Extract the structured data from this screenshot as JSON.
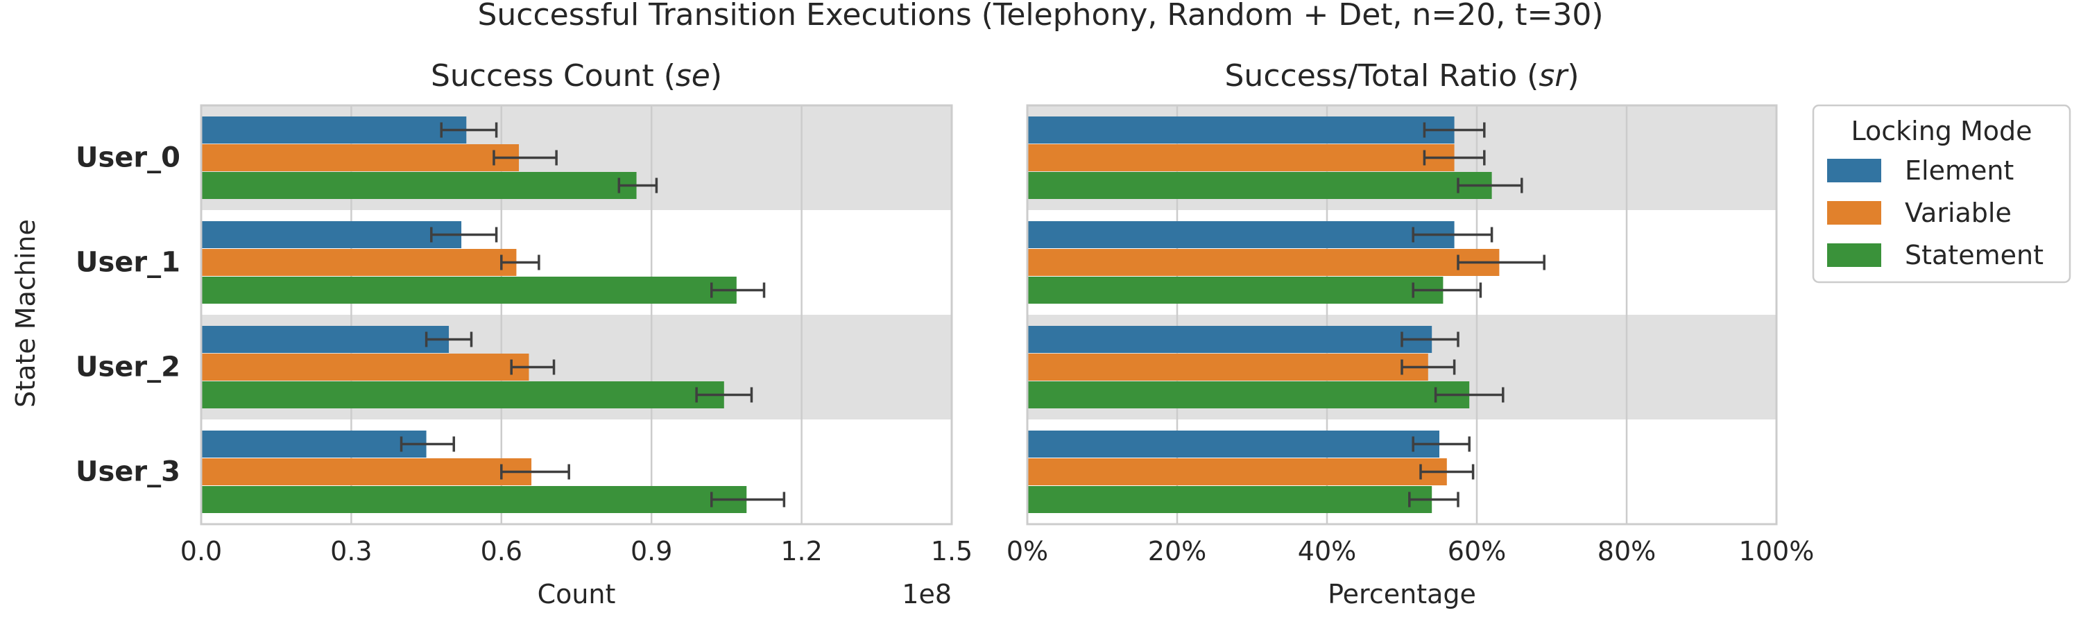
{
  "figure": {
    "suptitle": "Successful Transition Executions (Telephony, Random + Det, n=20, t=30)",
    "ylabel": "State Machine"
  },
  "legend": {
    "title": "Locking Mode",
    "entries": [
      "Element",
      "Variable",
      "Statement"
    ]
  },
  "colors": {
    "Element": "#3274a1",
    "Variable": "#e1812c",
    "Statement": "#3a923a",
    "band": "#e0e0e0",
    "grid": "#cccccc",
    "frame": "#cccccc",
    "errorbar": "#3f3f3f"
  },
  "chart_data": [
    {
      "type": "bar",
      "orientation": "horizontal",
      "title_prefix": "Success Count (",
      "title_italic": "se",
      "title_suffix": ")",
      "xlabel": "Count",
      "offset_text": "1e8",
      "xlim": [
        0,
        1.5
      ],
      "xticks": [
        0.0,
        0.3,
        0.6,
        0.9,
        1.2,
        1.5
      ],
      "xtick_labels": [
        "0.0",
        "0.3",
        "0.6",
        "0.9",
        "1.2",
        "1.5"
      ],
      "categories": [
        "User_0",
        "User_1",
        "User_2",
        "User_3"
      ],
      "series": [
        {
          "name": "Element",
          "values": [
            0.53,
            0.52,
            0.495,
            0.45
          ],
          "err_low": [
            0.48,
            0.46,
            0.45,
            0.4
          ],
          "err_high": [
            0.59,
            0.59,
            0.54,
            0.505
          ]
        },
        {
          "name": "Variable",
          "values": [
            0.635,
            0.63,
            0.655,
            0.66
          ],
          "err_low": [
            0.585,
            0.6,
            0.62,
            0.6
          ],
          "err_high": [
            0.71,
            0.675,
            0.705,
            0.735
          ]
        },
        {
          "name": "Statement",
          "values": [
            0.87,
            1.07,
            1.045,
            1.09
          ],
          "err_low": [
            0.835,
            1.02,
            0.99,
            1.02
          ],
          "err_high": [
            0.91,
            1.125,
            1.1,
            1.165
          ]
        }
      ]
    },
    {
      "type": "bar",
      "orientation": "horizontal",
      "title_prefix": "Success/Total Ratio (",
      "title_italic": "sr",
      "title_suffix": ")",
      "xlabel": "Percentage",
      "xlim": [
        0,
        100
      ],
      "xticks": [
        0,
        20,
        40,
        60,
        80,
        100
      ],
      "xtick_labels": [
        "0%",
        "20%",
        "40%",
        "60%",
        "80%",
        "100%"
      ],
      "categories": [
        "User_0",
        "User_1",
        "User_2",
        "User_3"
      ],
      "series": [
        {
          "name": "Element",
          "values": [
            57,
            57,
            54,
            55
          ],
          "err_low": [
            53,
            51.5,
            50,
            51.5
          ],
          "err_high": [
            61,
            62,
            57.5,
            59
          ]
        },
        {
          "name": "Variable",
          "values": [
            57,
            63,
            53.5,
            56
          ],
          "err_low": [
            53,
            57.5,
            50,
            52.5
          ],
          "err_high": [
            61,
            69,
            57,
            59.5
          ]
        },
        {
          "name": "Statement",
          "values": [
            62,
            55.5,
            59,
            54
          ],
          "err_low": [
            57.5,
            51.5,
            54.5,
            51
          ],
          "err_high": [
            66,
            60.5,
            63.5,
            57.5
          ]
        }
      ]
    }
  ]
}
